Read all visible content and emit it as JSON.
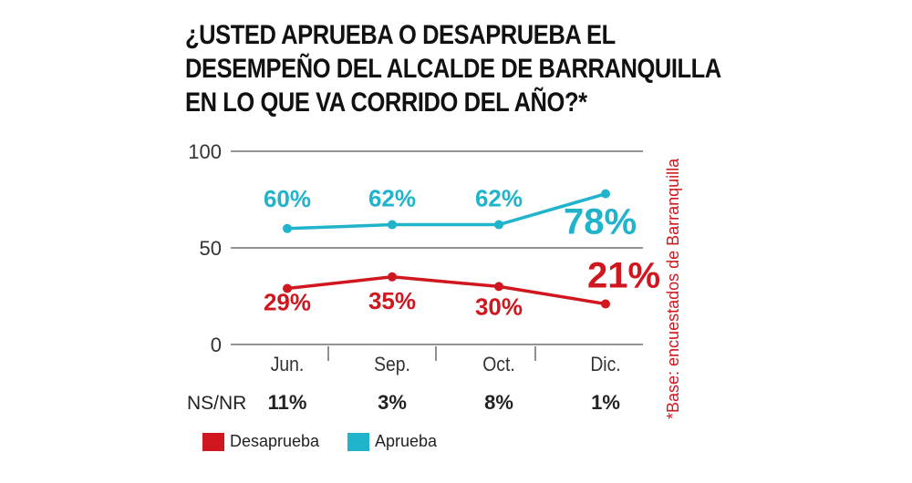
{
  "title_lines": [
    "¿USTED APRUEBA O DESAPRUEBA EL",
    "DESEMPEÑO DEL ALCALDE DE BARRANQUILLA",
    "EN LO QUE VA CORRIDO DEL AÑO?*"
  ],
  "side_note": "*Base: encuestados de Barranquilla",
  "chart_data": {
    "type": "line",
    "categories": [
      "Jun.",
      "Sep.",
      "Oct.",
      "Dic."
    ],
    "ylim": [
      0,
      100
    ],
    "yticks": [
      0,
      50,
      100
    ],
    "grid": true,
    "series": [
      {
        "name": "Desaprueba",
        "color": "#d0161e",
        "values": [
          29,
          35,
          30,
          21
        ],
        "labels": [
          "29%",
          "35%",
          "30%",
          "21%"
        ]
      },
      {
        "name": "Aprueba",
        "color": "#1fb3cc",
        "values": [
          60,
          62,
          62,
          78
        ],
        "labels": [
          "60%",
          "62%",
          "62%",
          "78%"
        ]
      }
    ],
    "nsnr": {
      "label": "NS/NR",
      "values": [
        "11%",
        "3%",
        "8%",
        "1%"
      ]
    },
    "legend": "bottom-left"
  }
}
